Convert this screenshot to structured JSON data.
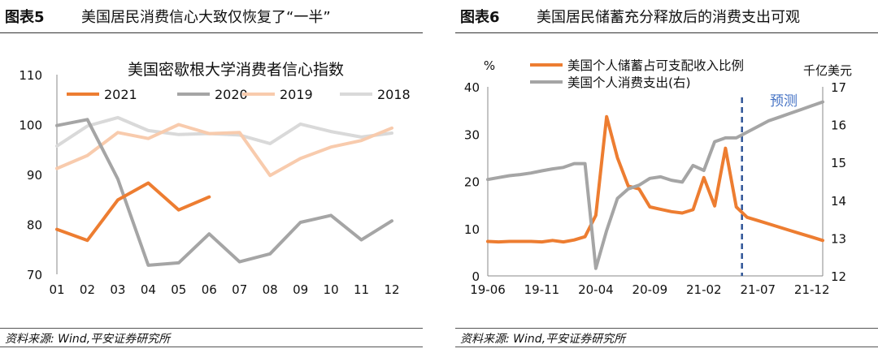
{
  "left": {
    "fig_label": "图表5",
    "fig_title": "美国居民消费信心大致仅恢复了“一半”",
    "source": "资料来源: Wind,平安证券研究所",
    "chart_data": {
      "type": "line",
      "title": "美国密歇根大学消费者信心指数",
      "categories": [
        "01",
        "02",
        "03",
        "04",
        "05",
        "06",
        "07",
        "08",
        "09",
        "10",
        "11",
        "12"
      ],
      "ylim": [
        70,
        110
      ],
      "yticks": [
        "110",
        "100",
        "90",
        "80",
        "70"
      ],
      "legend_position": "top",
      "grid": false,
      "series": [
        {
          "name": "2021",
          "color": "#ED7D31",
          "values": [
            79.0,
            76.8,
            84.9,
            88.3,
            82.9,
            85.5,
            null,
            null,
            null,
            null,
            null,
            null
          ]
        },
        {
          "name": "2020",
          "color": "#A5A5A5",
          "values": [
            99.8,
            101.0,
            89.1,
            71.8,
            72.3,
            78.1,
            72.5,
            74.1,
            80.4,
            81.8,
            76.9,
            80.7
          ]
        },
        {
          "name": "2019",
          "color": "#F8CBAD",
          "values": [
            91.2,
            93.8,
            98.4,
            97.2,
            100.0,
            98.2,
            98.4,
            89.8,
            93.2,
            95.5,
            96.8,
            99.3
          ]
        },
        {
          "name": "2018",
          "color": "#D9D9D9",
          "values": [
            95.7,
            99.7,
            101.4,
            98.8,
            98.0,
            98.2,
            97.9,
            96.2,
            100.1,
            98.6,
            97.5,
            98.3
          ]
        }
      ]
    }
  },
  "right": {
    "fig_label": "图表6",
    "fig_title": "美国居民储蓄充分释放后的消费支出可观",
    "source": "资料来源: Wind,平安证券研究所",
    "chart_data": {
      "type": "line",
      "ylabel_left": "%",
      "ylabel_right": "千亿美元",
      "ylim_left": [
        0,
        40
      ],
      "ylim_right": [
        12,
        17
      ],
      "yticks_left": [
        "40",
        "30",
        "20",
        "10",
        "0"
      ],
      "yticks_right": [
        "17",
        "16",
        "15",
        "14",
        "13",
        "12"
      ],
      "xtick_labels": [
        "19-06",
        "19-11",
        "20-04",
        "20-09",
        "21-02",
        "21-07",
        "21-12"
      ],
      "x_start": "2019-06",
      "forecast_label": "预测",
      "forecast_start": "2021-05",
      "legend_position": "top-left",
      "grid": false,
      "series": [
        {
          "name": "美国个人储蓄占可支配收入比例",
          "axis": "left",
          "color": "#ED7D31",
          "values": [
            7.3,
            7.2,
            7.3,
            7.3,
            7.3,
            7.2,
            7.5,
            7.2,
            7.6,
            8.3,
            12.8,
            33.7,
            25.0,
            19.0,
            18.4,
            14.6,
            14.1,
            13.6,
            13.3,
            14.0,
            20.8,
            14.8,
            27.0,
            14.6,
            12.4,
            11.7,
            11.0,
            10.3,
            9.6,
            8.9,
            8.2,
            7.5
          ]
        },
        {
          "name": "美国个人消费支出(右)",
          "axis": "right",
          "color": "#A5A5A5",
          "values": [
            14.55,
            14.6,
            14.65,
            14.68,
            14.72,
            14.78,
            14.83,
            14.87,
            14.97,
            14.97,
            12.2,
            13.2,
            14.05,
            14.3,
            14.4,
            14.58,
            14.62,
            14.53,
            14.48,
            14.92,
            14.79,
            15.55,
            15.65,
            15.65,
            15.8,
            15.95,
            16.1,
            16.2,
            16.3,
            16.4,
            16.5,
            16.6
          ]
        }
      ]
    }
  }
}
